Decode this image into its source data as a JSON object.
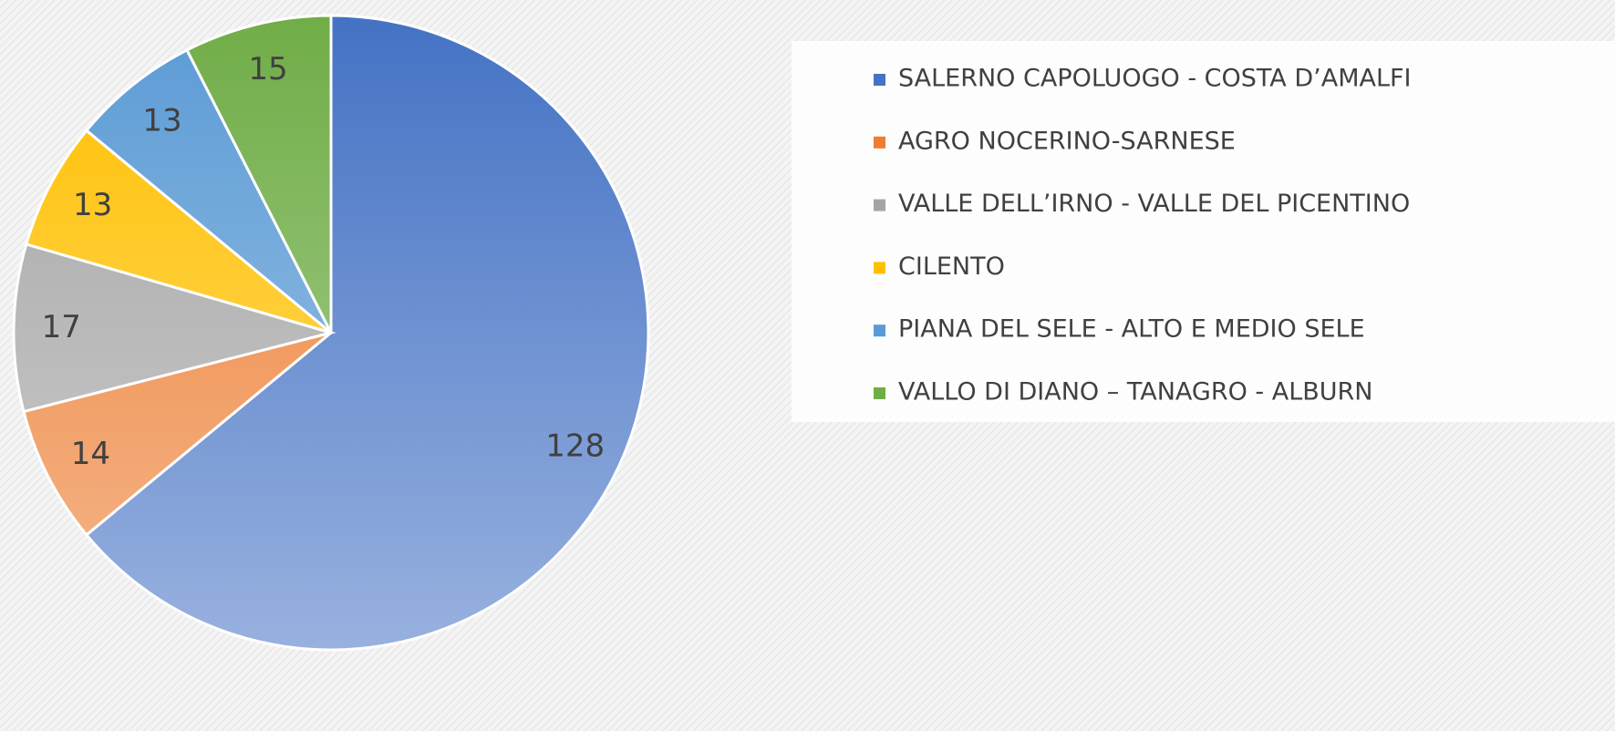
{
  "chart_data": {
    "type": "pie",
    "categories": [
      "SALERNO CAPOLUOGO - COSTA D’AMALFI",
      "AGRO NOCERINO-SARNESE",
      "VALLE DELL’IRNO - VALLE DEL PICENTINO",
      "CILENTO",
      "PIANA DEL SELE  - ALTO E MEDIO SELE",
      "VALLO DI DIANO – TANAGRO - ALBURN"
    ],
    "values": [
      128,
      14,
      17,
      13,
      13,
      15
    ],
    "colors": [
      "#4472c4",
      "#ed7d31",
      "#a5a5a5",
      "#ffc000",
      "#5b9bd5",
      "#70ad47"
    ],
    "legend": "right"
  }
}
